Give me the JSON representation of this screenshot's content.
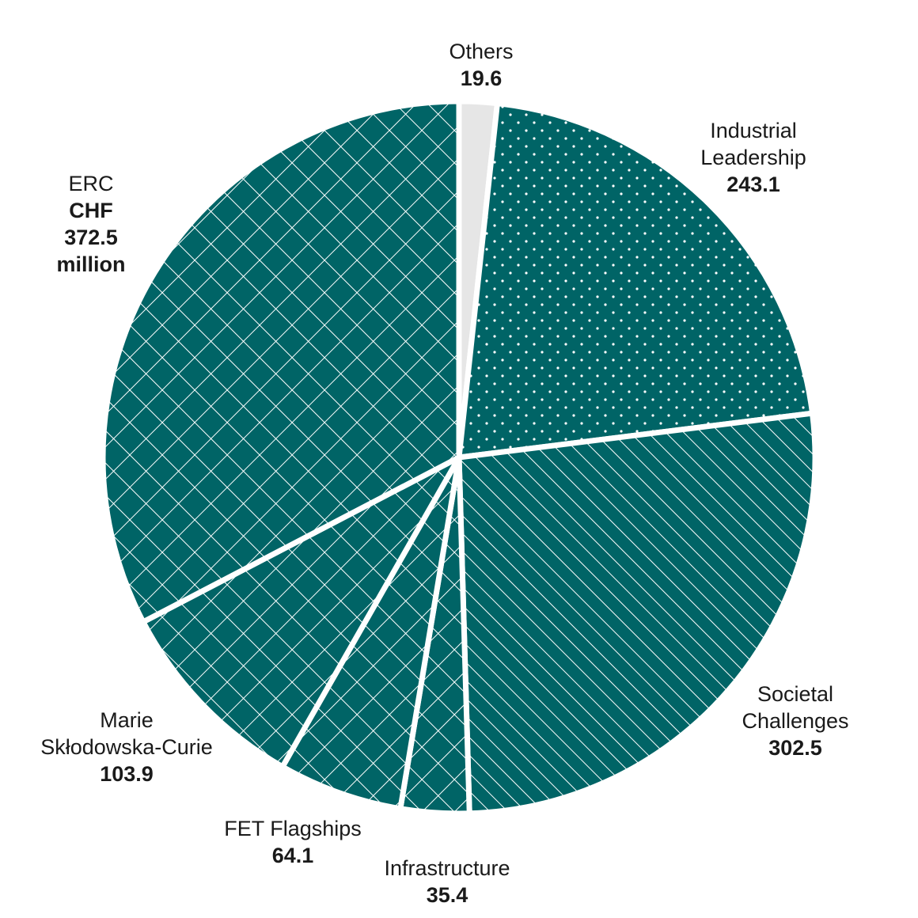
{
  "chart_data": {
    "type": "pie",
    "unit_label": "CHF",
    "unit_suffix": "million",
    "slices": [
      {
        "name": "Others",
        "value": 19.6,
        "color": "#e6e6e6",
        "pattern": "solid"
      },
      {
        "name": "Industrial Leadership",
        "name_lines": [
          "Industrial",
          "Leadership"
        ],
        "value": 243.1,
        "color": "#006466",
        "pattern": "dots"
      },
      {
        "name": "Societal Challenges",
        "name_lines": [
          "Societal",
          "Challenges"
        ],
        "value": 302.5,
        "color": "#006466",
        "pattern": "diagonal"
      },
      {
        "name": "Infrastructure",
        "value": 35.4,
        "color": "#006466",
        "pattern": "crosshatch"
      },
      {
        "name": "FET Flagships",
        "value": 64.1,
        "color": "#006466",
        "pattern": "crosshatch"
      },
      {
        "name": "Marie Skłodowska-Curie",
        "name_lines": [
          "Marie",
          "Skłodowska-Curie"
        ],
        "value": 103.9,
        "color": "#006466",
        "pattern": "crosshatch"
      },
      {
        "name": "ERC",
        "value": 372.5,
        "color": "#006466",
        "pattern": "crosshatch"
      }
    ]
  }
}
